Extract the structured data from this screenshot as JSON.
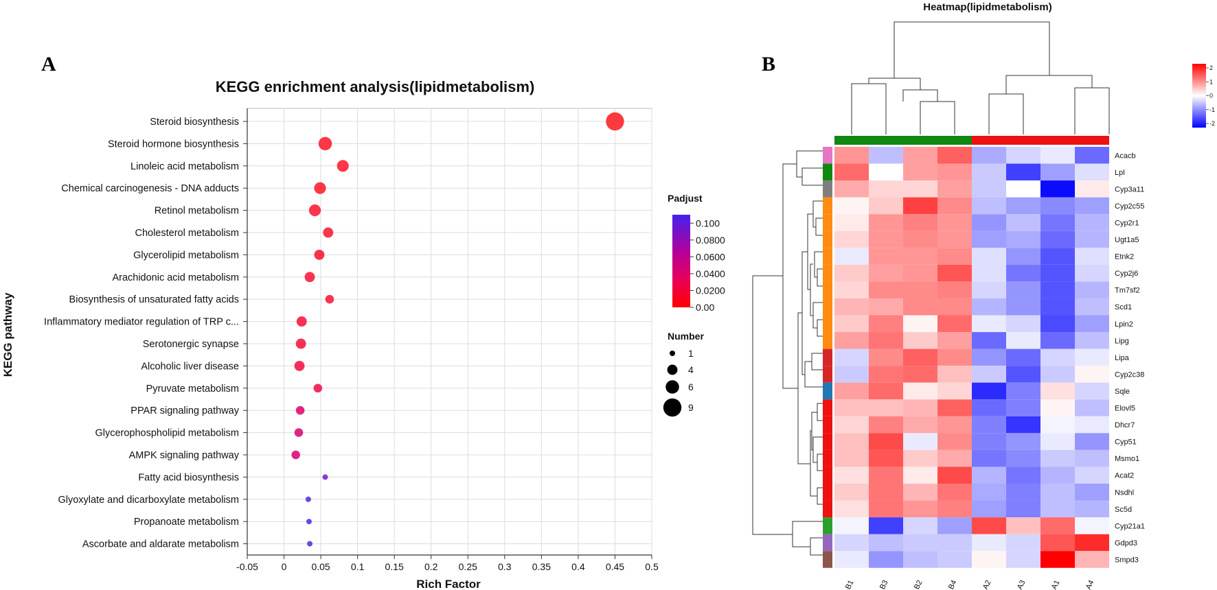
{
  "panel_a_letter": "A",
  "panel_b_letter": "B",
  "colors": {
    "padjust_low": "#ff0000",
    "padjust_high": "#4422ee",
    "heat_high": "#ff0000",
    "heat_mid": "#ffffff",
    "heat_low": "#0000ff",
    "group_green": "#118811",
    "group_red": "#ee1111"
  },
  "chart_data": [
    {
      "type": "scatter",
      "title": "KEGG enrichment analysis(lipidmetabolism)",
      "xlabel": "Rich Factor",
      "ylabel": "KEGG pathway",
      "xlim": [
        -0.05,
        0.5
      ],
      "x_ticks": [
        "-0.05",
        "0",
        "0.05",
        "0.1",
        "0.15",
        "0.2",
        "0.25",
        "0.3",
        "0.35",
        "0.4",
        "0.45",
        "0.5"
      ],
      "grid": true,
      "categories": [
        "Steroid biosynthesis",
        "Steroid hormone biosynthesis",
        "Linoleic acid metabolism",
        "Chemical carcinogenesis - DNA adducts",
        "Retinol metabolism",
        "Cholesterol metabolism",
        "Glycerolipid metabolism",
        "Arachidonic acid metabolism",
        "Biosynthesis of unsaturated fatty acids",
        "Inflammatory mediator regulation of TRP c...",
        "Serotonergic synapse",
        "Alcoholic liver disease",
        "Pyruvate metabolism",
        "PPAR signaling pathway",
        "Glycerophospholipid metabolism",
        "AMPK signaling pathway",
        "Fatty acid biosynthesis",
        "Glyoxylate and dicarboxylate metabolism",
        "Propanoate metabolism",
        "Ascorbate and aldarate metabolism"
      ],
      "rich_factor": [
        0.45,
        0.056,
        0.08,
        0.049,
        0.042,
        0.06,
        0.048,
        0.035,
        0.062,
        0.024,
        0.023,
        0.021,
        0.046,
        0.022,
        0.02,
        0.016,
        0.056,
        0.033,
        0.034,
        0.035
      ],
      "number": [
        9,
        6,
        5,
        5,
        5,
        4,
        4,
        4,
        3,
        4,
        4,
        4,
        3,
        3,
        3,
        3,
        1,
        1,
        1,
        1
      ],
      "padjust": [
        0.002,
        0.005,
        0.006,
        0.006,
        0.008,
        0.008,
        0.01,
        0.012,
        0.012,
        0.015,
        0.015,
        0.017,
        0.02,
        0.035,
        0.04,
        0.04,
        0.09,
        0.1,
        0.1,
        0.1
      ],
      "legend": {
        "color_title": "Padjust",
        "color_ticks": [
          "0.100",
          "0.0800",
          "0.0600",
          "0.0400",
          "0.0200",
          "0.00"
        ],
        "size_title": "Number",
        "size_labels": [
          "1",
          "4",
          "6",
          "9"
        ]
      }
    },
    {
      "type": "heatmap",
      "title": "Heatmap(lipidmetabolism)",
      "columns": [
        "B1",
        "B3",
        "B2",
        "B4",
        "A2",
        "A3",
        "A1",
        "A4"
      ],
      "rows": [
        "Acacb",
        "Lpl",
        "Cyp3a11",
        "Cyp2c55",
        "Cyp2r1",
        "Ugt1a5",
        "Etnk2",
        "Cyp2j6",
        "Tm7sf2",
        "Scd1",
        "Lpin2",
        "Lipg",
        "Lipa",
        "Cyp2c38",
        "Sqle",
        "Elovl5",
        "Dhcr7",
        "Cyp51",
        "Msmo1",
        "Acat2",
        "Nsdhl",
        "Sc5d",
        "Cyp21a1",
        "Gdpd3",
        "Smpd3"
      ],
      "values": [
        [
          1.0,
          -0.6,
          0.9,
          1.5,
          -0.8,
          -0.4,
          -0.2,
          -1.4
        ],
        [
          1.4,
          0.0,
          0.9,
          1.0,
          -0.5,
          -1.8,
          -0.9,
          -0.3
        ],
        [
          0.8,
          0.4,
          0.4,
          0.9,
          -0.5,
          0.0,
          -2.3,
          0.2
        ],
        [
          0.1,
          0.5,
          1.8,
          1.1,
          -0.6,
          -0.9,
          -1.1,
          -0.9
        ],
        [
          0.2,
          1.0,
          1.2,
          1.0,
          -1.0,
          -0.6,
          -1.3,
          -0.7
        ],
        [
          0.4,
          1.0,
          1.1,
          1.0,
          -0.9,
          -0.8,
          -1.4,
          -0.7
        ],
        [
          -0.2,
          1.0,
          1.0,
          1.1,
          -0.3,
          -1.0,
          -1.6,
          -0.3
        ],
        [
          0.5,
          0.9,
          1.0,
          1.6,
          -0.3,
          -1.3,
          -1.6,
          -0.4
        ],
        [
          0.4,
          1.1,
          1.1,
          1.2,
          -0.4,
          -1.0,
          -1.6,
          -0.7
        ],
        [
          0.7,
          0.8,
          1.1,
          1.1,
          -0.7,
          -1.0,
          -1.6,
          -0.6
        ],
        [
          0.5,
          1.2,
          0.1,
          1.4,
          -0.2,
          -0.4,
          -1.7,
          -0.9
        ],
        [
          0.9,
          1.3,
          0.5,
          0.9,
          -1.4,
          -0.2,
          -1.4,
          -0.6
        ],
        [
          -0.4,
          1.1,
          1.5,
          1.1,
          -1.0,
          -1.4,
          -0.4,
          -0.2
        ],
        [
          -0.5,
          1.3,
          1.4,
          0.6,
          -0.5,
          -1.6,
          -0.5,
          0.1
        ],
        [
          0.9,
          1.4,
          0.2,
          0.4,
          -2.0,
          -1.2,
          0.3,
          -0.4
        ],
        [
          0.6,
          0.6,
          0.7,
          1.5,
          -1.4,
          -1.2,
          0.1,
          -0.6
        ],
        [
          0.4,
          1.2,
          0.8,
          1.0,
          -1.2,
          -1.9,
          -0.1,
          -0.2
        ],
        [
          0.6,
          1.7,
          -0.2,
          1.1,
          -1.2,
          -1.0,
          -0.2,
          -1.0
        ],
        [
          0.6,
          1.6,
          0.5,
          0.8,
          -1.3,
          -1.1,
          -0.5,
          -0.6
        ],
        [
          0.3,
          1.3,
          0.2,
          1.7,
          -0.7,
          -1.3,
          -0.7,
          -0.4
        ],
        [
          0.5,
          1.3,
          0.7,
          1.3,
          -0.8,
          -1.2,
          -0.6,
          -0.9
        ],
        [
          0.3,
          1.3,
          1.0,
          1.2,
          -0.9,
          -1.2,
          -0.6,
          -0.7
        ],
        [
          -0.1,
          -1.8,
          -0.4,
          -0.9,
          1.7,
          0.6,
          1.4,
          -0.1
        ],
        [
          -0.4,
          -0.6,
          -0.5,
          -0.5,
          -0.2,
          -0.4,
          1.6,
          2.0
        ],
        [
          -0.2,
          -1.0,
          -0.6,
          -0.5,
          0.1,
          -0.4,
          2.4,
          0.7
        ]
      ],
      "column_groups": [
        "#118811",
        "#118811",
        "#118811",
        "#118811",
        "#ee1111",
        "#ee1111",
        "#ee1111",
        "#ee1111"
      ],
      "row_groups": [
        "#e377c2",
        "#118811",
        "#7f7f7f",
        "#ff8c10",
        "#ff8c10",
        "#ff8c10",
        "#ff8c10",
        "#ff8c10",
        "#ff8c10",
        "#ff8c10",
        "#ff8c10",
        "#ff8c10",
        "#d62728",
        "#d62728",
        "#1f77b4",
        "#ee1111",
        "#ee1111",
        "#ee1111",
        "#ee1111",
        "#ee1111",
        "#ee1111",
        "#ee1111",
        "#2ca02c",
        "#9467bd",
        "#8c564b"
      ],
      "scale_ticks": [
        "2",
        "1",
        "0",
        "-1",
        "-2"
      ]
    }
  ]
}
